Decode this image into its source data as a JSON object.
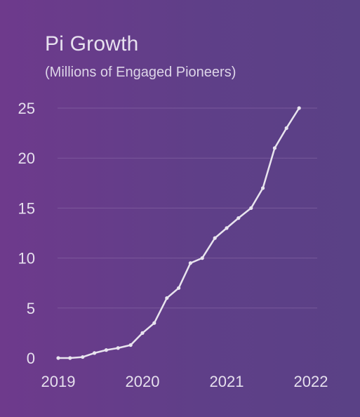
{
  "chart_data": {
    "type": "line",
    "title": "Pi Growth",
    "subtitle": "(Millions of Engaged Pioneers)",
    "xlabel": "",
    "ylabel": "",
    "x_ticks": [
      "2019",
      "2020",
      "2021",
      "2022"
    ],
    "y_ticks": [
      "0",
      "5",
      "10",
      "15",
      "20",
      "25"
    ],
    "ylim": [
      0,
      25
    ],
    "xlim": [
      2019,
      2022
    ],
    "grid": "horizontal",
    "colors": {
      "line": "#e8e4ee",
      "grid": "#8b6aa8",
      "background_start": "#6e3a8c",
      "background_end": "#5a4186"
    },
    "series": [
      {
        "x": [
          2019.0,
          2019.14,
          2019.29,
          2019.43,
          2019.57,
          2019.71,
          2019.86,
          2020.0,
          2020.14,
          2020.29,
          2020.43,
          2020.57,
          2020.71,
          2020.86,
          2021.0,
          2021.14,
          2021.29,
          2021.43,
          2021.57,
          2021.71,
          2021.86,
          2022.0
        ],
        "values": [
          0.0,
          0.0,
          0.1,
          0.5,
          0.8,
          1.0,
          1.3,
          2.5,
          3.5,
          6.0,
          7.0,
          9.5,
          10.0,
          12.0,
          13.0,
          14.0,
          15.0,
          17.0,
          21.0,
          23.0,
          25.0,
          null
        ]
      }
    ]
  }
}
